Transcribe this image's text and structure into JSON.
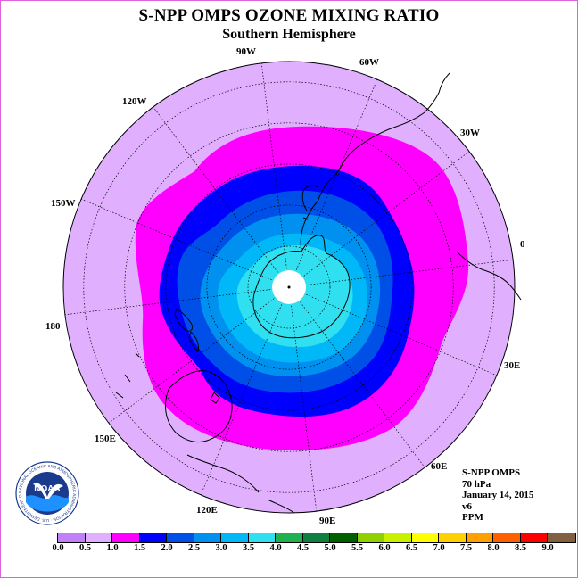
{
  "title": "S-NPP OMPS OZONE MIXING RATIO",
  "subtitle": "Southern Hemisphere",
  "longitude_labels": [
    {
      "text": "90W"
    },
    {
      "text": "60W"
    },
    {
      "text": "30W"
    },
    {
      "text": "0"
    },
    {
      "text": "30E"
    },
    {
      "text": "60E"
    },
    {
      "text": "90E"
    },
    {
      "text": "120E"
    },
    {
      "text": "150E"
    },
    {
      "text": "180"
    },
    {
      "text": "150W"
    },
    {
      "text": "120W"
    }
  ],
  "info": {
    "instrument": "S-NPP OMPS",
    "level": "70 hPa",
    "date": "January 14, 2015",
    "version": "v6",
    "units": "PPM"
  },
  "logo": {
    "text": "NOAA",
    "ring_text": "NATIONAL OCEANIC AND ATMOSPHERIC ADMINISTRATION · U.S. DEPARTMENT OF COMMERCE",
    "icon": "noaa-logo"
  },
  "colorbar": {
    "labels": [
      "0.0",
      "0.5",
      "1.0",
      "1.5",
      "2.0",
      "2.5",
      "3.0",
      "3.5",
      "4.0",
      "4.5",
      "5.0",
      "5.5",
      "6.0",
      "6.5",
      "7.0",
      "7.5",
      "8.0",
      "8.5",
      "9.0"
    ],
    "colors": [
      "#c080f8",
      "#e0b0ff",
      "#ff00ff",
      "#0000ff",
      "#0050e8",
      "#0090f0",
      "#00b8f8",
      "#30e0f0",
      "#20b050",
      "#108040",
      "#006000",
      "#90d000",
      "#c8f000",
      "#ffff00",
      "#ffd000",
      "#ffa000",
      "#ff6000",
      "#ff0000",
      "#806040"
    ]
  },
  "map": {
    "background_color": "#e0b0ff",
    "level_colors": {
      "band_1.0_1.5": "#ff00ff",
      "band_1.5_2.0": "#0000ff",
      "band_2.0_2.5": "#0050e8",
      "band_2.5_3.0": "#0090f0",
      "band_3.0_3.5": "#00b8f8",
      "band_3.5_4.0": "#30e0f0",
      "pole_nodata": "#ffffff"
    }
  }
}
